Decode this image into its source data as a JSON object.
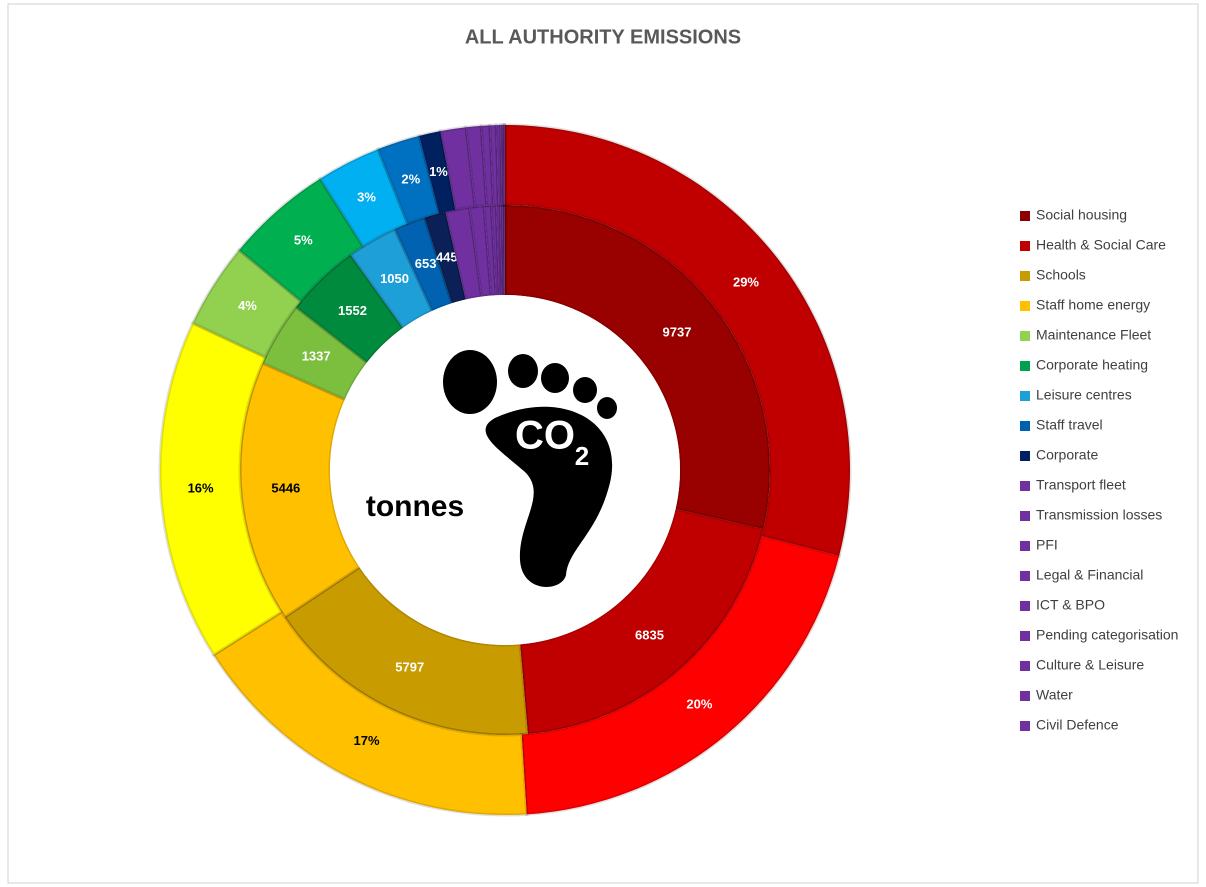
{
  "chart_data": {
    "type": "double-donut",
    "title": "ALL AUTHORITY EMISSIONS",
    "center_label": "tonnes",
    "icon_text": "CO",
    "icon_subscript": "2",
    "categories": [
      "Social housing",
      "Health & Social Care",
      "Schools",
      "Staff home energy",
      "Maintenance Fleet",
      "Corporate heating",
      "Leisure centres",
      "Staff travel",
      "Corporate",
      "Transport fleet",
      "Transmission losses",
      "PFI",
      "Legal & Financial",
      "ICT & BPO",
      "Pending categorisation",
      "Culture & Leisure",
      "Water",
      "Civil Defence"
    ],
    "series": [
      {
        "name": "tonnes",
        "ring": "inner",
        "colors": [
          "#990000",
          "#c00000",
          "#c89b00",
          "#ffc000",
          "#7cbf3e",
          "#008a3e",
          "#1f9fd8",
          "#0062b0",
          "#0b2057",
          "#7030a0",
          "#7030a0",
          "#7030a0",
          "#7030a0",
          "#7030a0",
          "#7030a0",
          "#7030a0",
          "#7030a0",
          "#7030a0"
        ],
        "values": [
          9737,
          6835,
          5797,
          5446,
          1337,
          1552,
          1050,
          653,
          445,
          500,
          300,
          150,
          100,
          80,
          50,
          30,
          10,
          10
        ]
      },
      {
        "name": "percent",
        "ring": "outer",
        "colors": [
          "#c00000",
          "#ff0000",
          "#ffc000",
          "#ffff00",
          "#92d050",
          "#00b050",
          "#00b0f0",
          "#0070c0",
          "#002060",
          "#7030a0",
          "#7030a0",
          "#7030a0",
          "#7030a0",
          "#7030a0",
          "#7030a0",
          "#7030a0",
          "#7030a0",
          "#7030a0"
        ],
        "values": [
          29,
          20,
          17,
          16,
          4,
          5,
          3,
          2,
          1,
          1.2,
          0.7,
          0.4,
          0.3,
          0.2,
          0.1,
          0.05,
          0.03,
          0.02
        ],
        "value_labels": [
          "29%",
          "20%",
          "17%",
          "16%",
          "4%",
          "5%",
          "3%",
          "2%",
          "1%",
          null,
          null,
          null,
          null,
          null,
          null,
          null,
          null,
          null
        ]
      }
    ],
    "legend_colors": [
      "#8b0000",
      "#c00000",
      "#c89b00",
      "#ffc000",
      "#92d050",
      "#00a050",
      "#1f9fd8",
      "#0060b0",
      "#002060",
      "#7030a0",
      "#7030a0",
      "#7030a0",
      "#7030a0",
      "#7030a0",
      "#7030a0",
      "#7030a0",
      "#7030a0",
      "#7030a0"
    ],
    "legend_position": "right"
  }
}
